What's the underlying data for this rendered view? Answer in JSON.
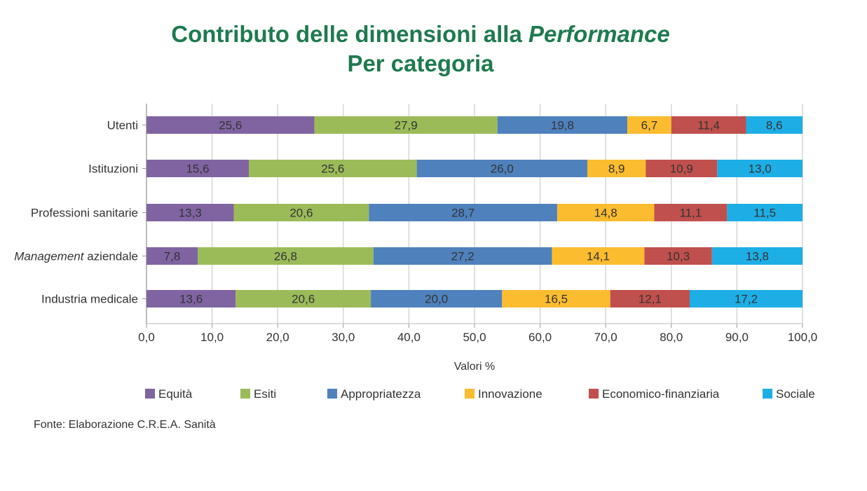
{
  "title_line1_main": "Contributo delle dimensioni alla ",
  "title_line1_italic": "Performance",
  "title_line2": "Per categoria",
  "source": "Fonte: Elaborazione C.R.E.A. Sanità",
  "chart_data": {
    "type": "bar",
    "orientation": "horizontal",
    "stacked": true,
    "xlabel": "Valori %",
    "xlim": [
      0,
      100
    ],
    "xticks": [
      "0,0",
      "10,0",
      "20,0",
      "30,0",
      "40,0",
      "50,0",
      "60,0",
      "70,0",
      "80,0",
      "90,0",
      "100,0"
    ],
    "grid": "vertical",
    "legend_position": "bottom",
    "categories": [
      {
        "prefix": "",
        "italic": "",
        "suffix": "Utenti"
      },
      {
        "prefix": "",
        "italic": "",
        "suffix": "Istituzioni"
      },
      {
        "prefix": "",
        "italic": "",
        "suffix": "Professioni sanitarie"
      },
      {
        "prefix": "",
        "italic": "Management",
        "suffix": " aziendale"
      },
      {
        "prefix": "",
        "italic": "",
        "suffix": "Industria medicale"
      }
    ],
    "series": [
      {
        "name": "Equità",
        "color": "#8064a2",
        "values": [
          25.6,
          15.6,
          13.3,
          7.8,
          13.6
        ],
        "labels": [
          "25,6",
          "15,6",
          "13,3",
          "7,8",
          "13,6"
        ]
      },
      {
        "name": "Esiti",
        "color": "#9bbb59",
        "values": [
          27.9,
          25.6,
          20.6,
          26.8,
          20.6
        ],
        "labels": [
          "27,9",
          "25,6",
          "20,6",
          "26,8",
          "20,6"
        ]
      },
      {
        "name": "Appropriatezza",
        "color": "#4f81bd",
        "values": [
          19.8,
          26.0,
          28.7,
          27.2,
          20.0
        ],
        "labels": [
          "19,8",
          "26,0",
          "28,7",
          "27,2",
          "20,0"
        ]
      },
      {
        "name": "Innovazione",
        "color": "#fbbc2f",
        "values": [
          6.7,
          8.9,
          14.8,
          14.1,
          16.5
        ],
        "labels": [
          "6,7",
          "8,9",
          "14,8",
          "14,1",
          "16,5"
        ]
      },
      {
        "name": "Economico-finanziaria",
        "color": "#c0504d",
        "values": [
          11.4,
          10.9,
          11.1,
          10.3,
          12.1
        ],
        "labels": [
          "11,4",
          "10,9",
          "11,1",
          "10,3",
          "12,1"
        ]
      },
      {
        "name": "Sociale",
        "color": "#1eaee6",
        "values": [
          8.6,
          13.0,
          11.5,
          13.8,
          17.2
        ],
        "labels": [
          "8,6",
          "13,0",
          "11,5",
          "13,8",
          "17,2"
        ]
      }
    ]
  }
}
